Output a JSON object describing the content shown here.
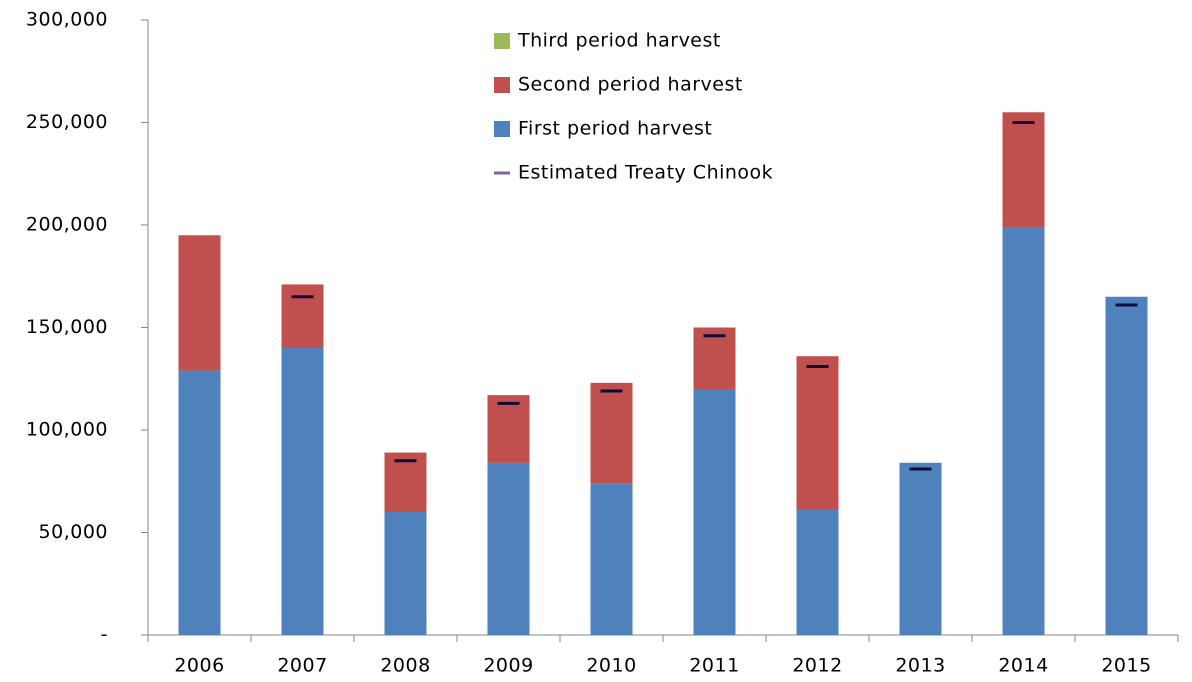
{
  "chart_data": {
    "type": "bar",
    "stacked": true,
    "categories": [
      "2006",
      "2007",
      "2008",
      "2009",
      "2010",
      "2011",
      "2012",
      "2013",
      "2014",
      "2015"
    ],
    "series": [
      {
        "name": "First period harvest",
        "color": "#4f81bd",
        "values": [
          129000,
          140000,
          60000,
          84000,
          74000,
          120000,
          61000,
          84000,
          199000,
          165000
        ]
      },
      {
        "name": "Second period harvest",
        "color": "#c0504d",
        "values": [
          66000,
          31000,
          29000,
          33000,
          49000,
          30000,
          75000,
          0,
          56000,
          0
        ]
      },
      {
        "name": "Third period harvest",
        "color": "#9bbb59",
        "values": [
          0,
          0,
          0,
          0,
          0,
          0,
          0,
          0,
          0,
          0
        ]
      },
      {
        "name": "Estimated Treaty Chinook",
        "type": "marker",
        "color": "#8064a2",
        "marker_color": "#0d0d3a",
        "values": [
          null,
          165000,
          85000,
          113000,
          119000,
          146000,
          131000,
          81000,
          250000,
          161000
        ]
      }
    ],
    "ylim": [
      0,
      300000
    ],
    "yticks": [
      {
        "value": 0,
        "label": "-"
      },
      {
        "value": 50000,
        "label": "50,000"
      },
      {
        "value": 100000,
        "label": "100,000"
      },
      {
        "value": 150000,
        "label": "150,000"
      },
      {
        "value": 200000,
        "label": "200,000"
      },
      {
        "value": 250000,
        "label": "250,000"
      },
      {
        "value": 300000,
        "label": "300,000"
      }
    ],
    "grid": false,
    "legend": "top"
  }
}
